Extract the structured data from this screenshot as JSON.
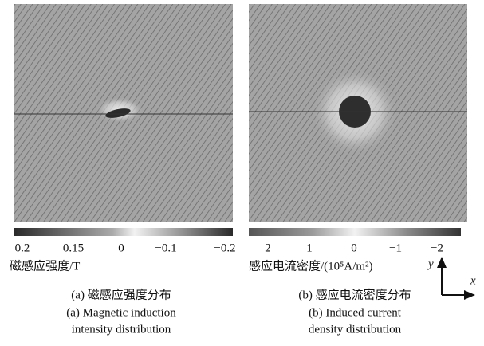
{
  "panels": [
    {
      "colorbar": {
        "ticks": [
          "0.2",
          "0.15",
          "0",
          "−0.1",
          "−0.2"
        ],
        "title": "磁感应强度/T"
      },
      "caption": {
        "zh": "(a) 磁感应强度分布",
        "en_line1": "(a) Magnetic induction",
        "en_line2": "intensity distribution"
      }
    },
    {
      "colorbar": {
        "ticks": [
          "2",
          "1",
          "0",
          "−1",
          "−2"
        ],
        "title": "感应电流密度/(10⁵A/m²)"
      },
      "caption": {
        "zh": "(b) 感应电流密度分布",
        "en_line1": "(b) Induced current",
        "en_line2": "density distribution"
      }
    }
  ],
  "axes": {
    "x": "x",
    "y": "y"
  }
}
